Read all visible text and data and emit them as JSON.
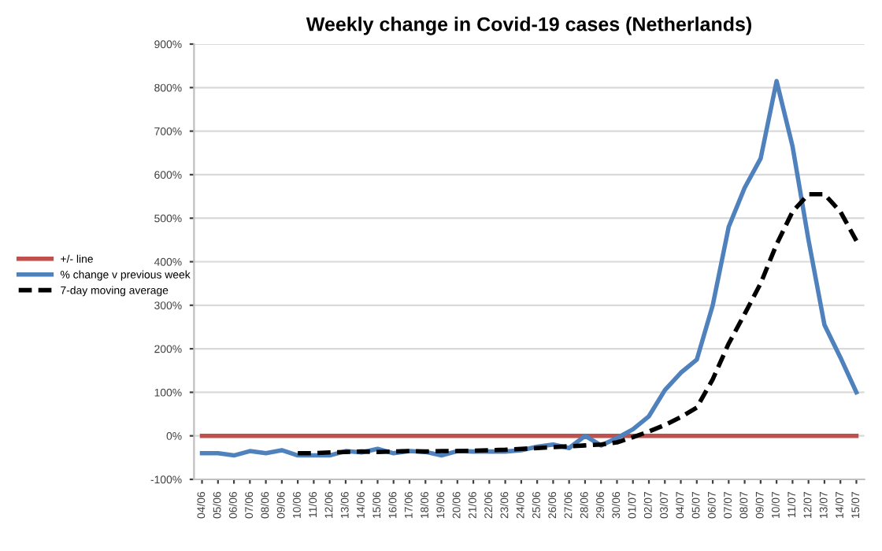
{
  "chart_data": {
    "type": "line",
    "title": "Weekly change in Covid-19 cases (Netherlands)",
    "categories": [
      "04/06",
      "05/06",
      "06/06",
      "07/06",
      "08/06",
      "09/06",
      "10/06",
      "11/06",
      "12/06",
      "13/06",
      "14/06",
      "15/06",
      "16/06",
      "17/06",
      "18/06",
      "19/06",
      "20/06",
      "21/06",
      "22/06",
      "23/06",
      "24/06",
      "25/06",
      "26/06",
      "27/06",
      "28/06",
      "29/06",
      "30/06",
      "01/07",
      "02/07",
      "03/07",
      "04/07",
      "05/07",
      "06/07",
      "07/07",
      "08/07",
      "09/07",
      "10/07",
      "11/07",
      "12/07",
      "13/07",
      "14/07",
      "15/07"
    ],
    "series": [
      {
        "name": "+/- line",
        "color": "#c0504d",
        "values": [
          0,
          0,
          0,
          0,
          0,
          0,
          0,
          0,
          0,
          0,
          0,
          0,
          0,
          0,
          0,
          0,
          0,
          0,
          0,
          0,
          0,
          0,
          0,
          0,
          0,
          0,
          0,
          0,
          0,
          0,
          0,
          0,
          0,
          0,
          0,
          0,
          0,
          0,
          0,
          0,
          0,
          0
        ]
      },
      {
        "name": "% change v previous week",
        "color": "#4f81bd",
        "values": [
          -40,
          -40,
          -45,
          -35,
          -40,
          -33,
          -45,
          -45,
          -45,
          -35,
          -38,
          -30,
          -40,
          -35,
          -37,
          -45,
          -35,
          -36,
          -36,
          -36,
          -33,
          -25,
          -20,
          -28,
          0,
          -22,
          -5,
          15,
          45,
          105,
          145,
          175,
          300,
          480,
          570,
          637,
          815,
          665,
          450,
          255,
          180,
          100
        ]
      },
      {
        "name": "7-day moving average",
        "color": "#000000",
        "line_style": "dashed",
        "values": [
          null,
          null,
          null,
          null,
          null,
          null,
          -40,
          -40,
          -38,
          -37,
          -36,
          -37,
          -36,
          -35,
          -36,
          -35,
          -35,
          -34,
          -33,
          -32,
          -30,
          -28,
          -26,
          -24,
          -22,
          -20,
          -15,
          -3,
          10,
          25,
          43,
          65,
          130,
          212,
          280,
          350,
          440,
          515,
          555,
          555,
          515,
          448
        ]
      }
    ],
    "ylim": [
      -100,
      900
    ],
    "yticks": [
      {
        "value": -100,
        "label": "-100%"
      },
      {
        "value": 0,
        "label": "0%"
      },
      {
        "value": 100,
        "label": "100%"
      },
      {
        "value": 200,
        "label": "200%"
      },
      {
        "value": 300,
        "label": "300%"
      },
      {
        "value": 400,
        "label": "400%"
      },
      {
        "value": 500,
        "label": "500%"
      },
      {
        "value": 600,
        "label": "600%"
      },
      {
        "value": 700,
        "label": "700%"
      },
      {
        "value": 800,
        "label": "800%"
      },
      {
        "value": 900,
        "label": "900%"
      }
    ],
    "grid": "y",
    "legend": "left",
    "marker": "none"
  }
}
